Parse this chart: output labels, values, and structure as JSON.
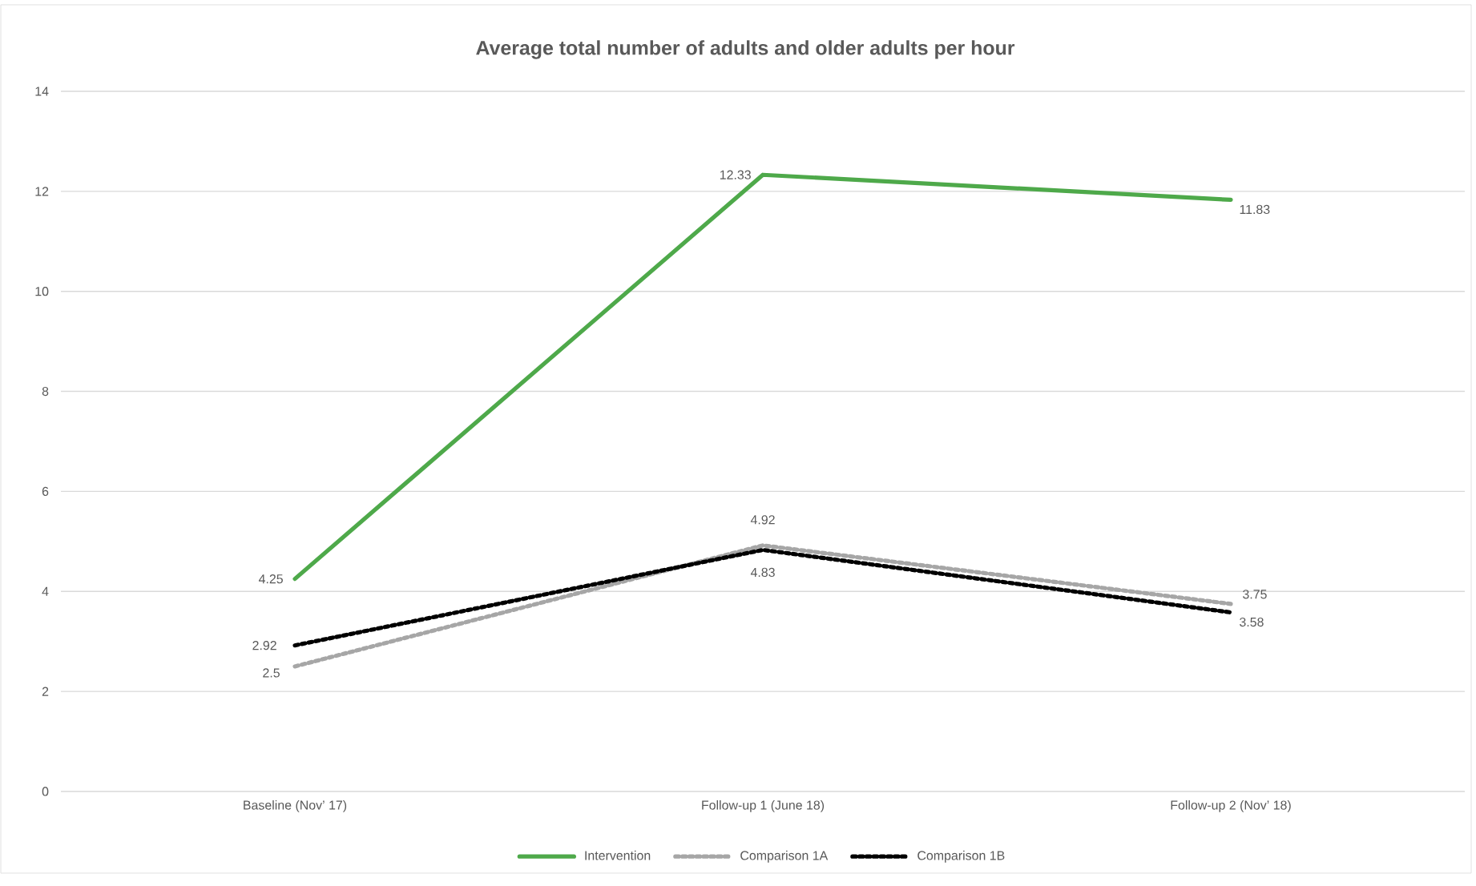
{
  "chart_data": {
    "type": "line",
    "title": "Average total number of adults and older adults per hour",
    "categories": [
      "Baseline (Nov’ 17)",
      "Follow-up 1 (June 18)",
      "Follow-up 2 (Nov’ 18)"
    ],
    "series": [
      {
        "name": "Intervention",
        "color": "#4ea94a",
        "values": [
          4.25,
          12.33,
          11.83
        ],
        "line_style": "solid"
      },
      {
        "name": "Comparison 1A",
        "color": "#a6a6a6",
        "values": [
          2.5,
          4.92,
          3.75
        ],
        "line_style": "dotted"
      },
      {
        "name": "Comparison 1B",
        "color": "#000000",
        "values": [
          2.92,
          4.83,
          3.58
        ],
        "line_style": "dotted"
      }
    ],
    "ylim": [
      0,
      14
    ],
    "yticks": [
      0,
      2,
      4,
      6,
      8,
      10,
      12,
      14
    ],
    "grid": "y",
    "legend": "bottom",
    "data_labels": true,
    "marker": "none"
  }
}
